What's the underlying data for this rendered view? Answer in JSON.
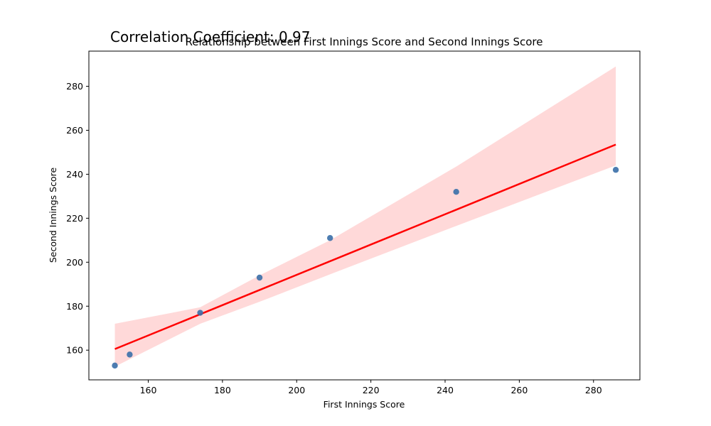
{
  "chart_data": {
    "type": "scatter",
    "title": "Relationship between First Innings Score and Second Innings Score",
    "annotation": "Correlation Coefficient: 0.97",
    "xlabel": "First Innings Score",
    "ylabel": "Second Innings Score",
    "xlim": [
      144.0,
      292.5
    ],
    "ylim": [
      146.5,
      296.0
    ],
    "xticks": [
      160,
      180,
      200,
      220,
      240,
      260,
      280
    ],
    "yticks": [
      160,
      180,
      200,
      220,
      240,
      260,
      280
    ],
    "points": [
      {
        "x": 151,
        "y": 153
      },
      {
        "x": 155,
        "y": 158
      },
      {
        "x": 174,
        "y": 177
      },
      {
        "x": 190,
        "y": 193
      },
      {
        "x": 209,
        "y": 211
      },
      {
        "x": 243,
        "y": 232
      },
      {
        "x": 286,
        "y": 242
      }
    ],
    "regression_line": {
      "x": [
        151,
        286
      ],
      "y": [
        160.5,
        253.5
      ]
    },
    "confidence_band": {
      "x": [
        151,
        174,
        190,
        209,
        243,
        286
      ],
      "upper": [
        172.0,
        179.5,
        194.0,
        210.0,
        243.5,
        289.0
      ],
      "lower": [
        152.5,
        172.0,
        182.0,
        194.5,
        216.5,
        244.0
      ]
    },
    "grid": false,
    "colors": {
      "points": "#3a6fa8",
      "line": "#ff0000",
      "band": "#ffd9d9"
    }
  }
}
